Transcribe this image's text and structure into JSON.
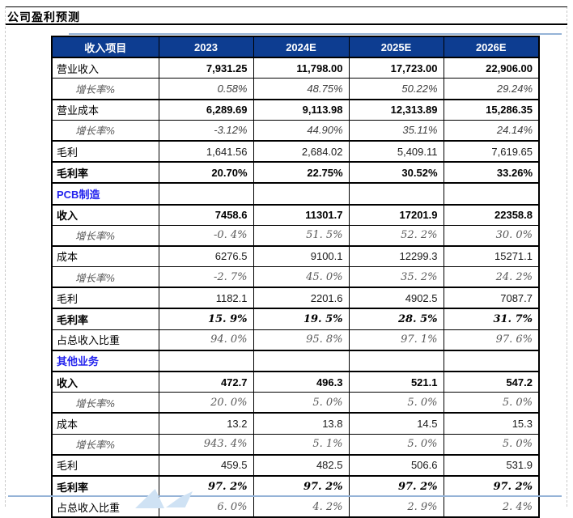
{
  "page": {
    "title": "公司盈利预测"
  },
  "table": {
    "columns": [
      "收入项目",
      "2023",
      "2024E",
      "2025E",
      "2026E"
    ],
    "rows": [
      {
        "label": "营业收入",
        "style": "bold",
        "values": [
          "7,931.25",
          "11,798.00",
          "17,723.00",
          "22,906.00"
        ]
      },
      {
        "label": "增长率%",
        "style": "growth-sans",
        "values": [
          "0.58%",
          "48.75%",
          "50.22%",
          "29.24%"
        ]
      },
      {
        "label": "营业成本",
        "style": "bold",
        "values": [
          "6,289.69",
          "9,113.98",
          "12,313.89",
          "15,286.35"
        ]
      },
      {
        "label": "增长率%",
        "style": "growth-sans",
        "values": [
          "-3.12%",
          "44.90%",
          "35.11%",
          "24.14%"
        ]
      },
      {
        "label": "毛利",
        "style": "plain",
        "values": [
          "1,641.56",
          "2,684.02",
          "5,409.11",
          "7,619.65"
        ]
      },
      {
        "label": "毛利率",
        "style": "bold",
        "label_bold": true,
        "values": [
          "20.70%",
          "22.75%",
          "30.52%",
          "33.26%"
        ]
      },
      {
        "label": "PCB制造",
        "style": "section",
        "values": [
          "",
          "",
          "",
          ""
        ]
      },
      {
        "label": "收入",
        "style": "bold",
        "label_bold": true,
        "values": [
          "7458.6",
          "11301.7",
          "17201.9",
          "22358.8"
        ]
      },
      {
        "label": "增长率%",
        "style": "growth-serif",
        "values": [
          "-0. 4%",
          "51. 5%",
          "52. 2%",
          "30. 0%"
        ]
      },
      {
        "label": "成本",
        "style": "plain",
        "values": [
          "6276.5",
          "9100.1",
          "12299.3",
          "15271.1"
        ]
      },
      {
        "label": "增长率%",
        "style": "growth-serif",
        "values": [
          "-2. 7%",
          "45. 0%",
          "35. 2%",
          "24. 2%"
        ]
      },
      {
        "label": "毛利",
        "style": "plain",
        "values": [
          "1182.1",
          "2201.6",
          "4902.5",
          "7087.7"
        ]
      },
      {
        "label": "毛利率",
        "style": "rate-bold",
        "label_bold": true,
        "values": [
          "15. 9%",
          "19. 5%",
          "28. 5%",
          "31. 7%"
        ]
      },
      {
        "label": "占总收入比重",
        "style": "ratio",
        "values": [
          "94. 0%",
          "95. 8%",
          "97. 1%",
          "97. 6%"
        ]
      },
      {
        "label": "其他业务",
        "style": "section",
        "values": [
          "",
          "",
          "",
          ""
        ]
      },
      {
        "label": "收入",
        "style": "bold",
        "label_bold": true,
        "values": [
          "472.7",
          "496.3",
          "521.1",
          "547.2"
        ]
      },
      {
        "label": "增长率%",
        "style": "growth-serif",
        "values": [
          "20. 0%",
          "5. 0%",
          "5. 0%",
          "5. 0%"
        ]
      },
      {
        "label": "成本",
        "style": "plain",
        "values": [
          "13.2",
          "13.8",
          "14.5",
          "15.3"
        ]
      },
      {
        "label": "增长率%",
        "style": "growth-serif",
        "values": [
          "943. 4%",
          "5. 1%",
          "5. 0%",
          "5. 0%"
        ]
      },
      {
        "label": "毛利",
        "style": "plain",
        "values": [
          "459.5",
          "482.5",
          "506.6",
          "531.9"
        ]
      },
      {
        "label": "毛利率",
        "style": "rate-bold",
        "label_bold": true,
        "values": [
          "97. 2%",
          "97. 2%",
          "97. 2%",
          "97. 2%"
        ]
      },
      {
        "label": "占总收入比重",
        "style": "ratio",
        "values": [
          "6. 0%",
          "4. 2%",
          "2. 9%",
          "2. 4%"
        ]
      }
    ]
  },
  "colors": {
    "header_bg": "#0d3d91",
    "header_text": "#ffffff",
    "section_text": "#2222ee",
    "accent_rule": "#95b3d7",
    "growth_text": "#595959",
    "border": "#000000",
    "watermark": "#cfe2f4"
  }
}
